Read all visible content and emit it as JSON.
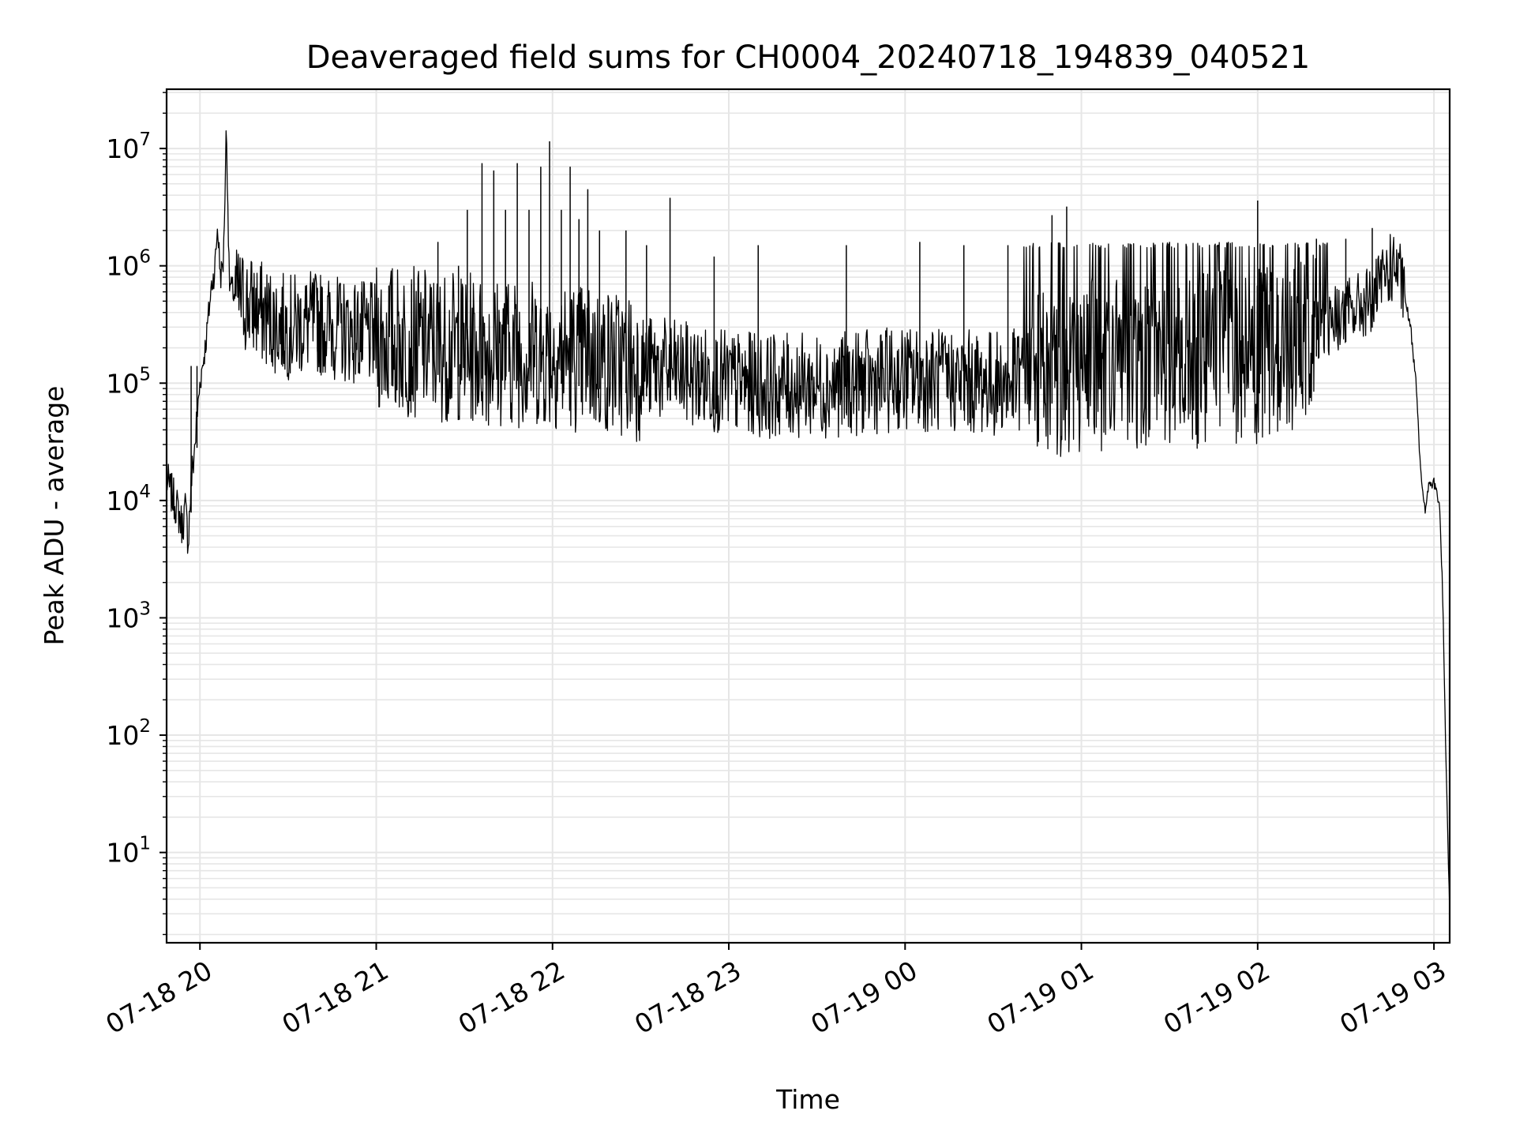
{
  "chart_data": {
    "type": "line",
    "title": "Deaveraged field sums for CH0004_20240718_194839_040521",
    "xlabel": "Time",
    "ylabel": "Peak ADU - average",
    "yscale": "log",
    "ylim": [
      1.7,
      32000000
    ],
    "xlim": [
      "07-18 19:48:39",
      "07-19 03:05:21"
    ],
    "grid": true,
    "line_color": "#000000",
    "grid_color": "#e6e6e6",
    "x_ticks": [
      "07-18 20",
      "07-18 21",
      "07-18 22",
      "07-18 23",
      "07-19 00",
      "07-19 01",
      "07-19 02",
      "07-19 03"
    ],
    "y_ticks": [
      {
        "base": "10",
        "exp": "1"
      },
      {
        "base": "10",
        "exp": "2"
      },
      {
        "base": "10",
        "exp": "3"
      },
      {
        "base": "10",
        "exp": "4"
      },
      {
        "base": "10",
        "exp": "5"
      },
      {
        "base": "10",
        "exp": "6"
      },
      {
        "base": "10",
        "exp": "7"
      }
    ],
    "series": [
      {
        "points": [
          [
            "07-18 19:48:39",
            15000
          ],
          [
            "07-18 19:50",
            12000
          ],
          [
            "07-18 19:52",
            9000
          ],
          [
            "07-18 19:54",
            6000
          ],
          [
            "07-18 19:55",
            8500
          ],
          [
            "07-18 19:56",
            4600
          ],
          [
            "07-18 19:57",
            14000
          ],
          [
            "07-18 19:58",
            25000
          ],
          [
            "07-18 20:00",
            100000
          ],
          [
            "07-18 20:02",
            220000
          ],
          [
            "07-18 20:03",
            400000
          ],
          [
            "07-18 20:04",
            700000
          ],
          [
            "07-18 20:05",
            900000
          ],
          [
            "07-18 20:06",
            2200000
          ],
          [
            "07-18 20:07",
            800000
          ],
          [
            "07-18 20:08",
            1100000
          ],
          [
            "07-18 20:09",
            16000000
          ],
          [
            "07-18 20:10",
            700000
          ],
          [
            "07-18 20:12",
            550000
          ],
          [
            "07-18 20:15",
            500000
          ],
          [
            "07-18 20:18",
            450000
          ],
          [
            "07-18 20:22",
            380000
          ],
          [
            "07-18 20:26",
            330000
          ],
          [
            "07-18 20:30",
            300000
          ],
          [
            "07-18 20:35",
            320000
          ],
          [
            "07-18 20:40",
            330000
          ],
          [
            "07-18 20:45",
            300000
          ],
          [
            "07-18 20:50",
            280000
          ],
          [
            "07-18 20:55",
            270000
          ],
          [
            "07-18 21:00",
            250000
          ],
          [
            "07-18 21:10",
            230000
          ],
          [
            "07-18 21:20",
            210000
          ],
          [
            "07-18 21:30",
            200000
          ],
          [
            "07-18 21:40",
            190000
          ],
          [
            "07-18 21:50",
            185000
          ],
          [
            "07-18 22:00",
            180000
          ],
          [
            "07-18 22:15",
            160000
          ],
          [
            "07-18 22:30",
            140000
          ],
          [
            "07-18 22:45",
            120000
          ],
          [
            "07-18 23:00",
            100000
          ],
          [
            "07-18 23:15",
            95000
          ],
          [
            "07-18 23:30",
            95000
          ],
          [
            "07-18 23:45",
            100000
          ],
          [
            "07-19 00:00",
            110000
          ],
          [
            "07-19 00:15",
            105000
          ],
          [
            "07-19 00:30",
            100000
          ],
          [
            "07-19 00:45",
            110000
          ],
          [
            "07-19 01:00",
            140000
          ],
          [
            "07-19 01:15",
            150000
          ],
          [
            "07-19 01:30",
            150000
          ],
          [
            "07-19 01:45",
            160000
          ],
          [
            "07-19 02:00",
            170000
          ],
          [
            "07-19 02:10",
            200000
          ],
          [
            "07-19 02:20",
            300000
          ],
          [
            "07-19 02:30",
            400000
          ],
          [
            "07-19 02:35",
            450000
          ],
          [
            "07-19 02:40",
            550000
          ],
          [
            "07-19 02:44",
            900000
          ],
          [
            "07-19 02:47",
            1000000
          ],
          [
            "07-19 02:49",
            700000
          ],
          [
            "07-19 02:50",
            550000
          ],
          [
            "07-19 02:52",
            300000
          ],
          [
            "07-19 02:54",
            100000
          ],
          [
            "07-19 02:55",
            30000
          ],
          [
            "07-19 02:56",
            12000
          ],
          [
            "07-19 02:57",
            8000
          ],
          [
            "07-19 02:58",
            13000
          ],
          [
            "07-19 03:00",
            14000
          ],
          [
            "07-19 03:01",
            12000
          ],
          [
            "07-19 03:02",
            8000
          ],
          [
            "07-19 03:03",
            1500
          ],
          [
            "07-19 03:04",
            80
          ],
          [
            "07-19 03:05:21",
            3
          ]
        ],
        "spikes": [
          [
            "07-18 19:57",
            140000
          ],
          [
            "07-18 19:59",
            140000
          ],
          [
            "07-18 20:25",
            600000
          ],
          [
            "07-18 20:40",
            650000
          ],
          [
            "07-18 20:55",
            600000
          ],
          [
            "07-18 21:12",
            700000
          ],
          [
            "07-18 21:21",
            1600000
          ],
          [
            "07-18 21:28",
            1000000
          ],
          [
            "07-18 21:31",
            3000000
          ],
          [
            "07-18 21:36",
            7500000
          ],
          [
            "07-18 21:40",
            6500000
          ],
          [
            "07-18 21:44",
            3000000
          ],
          [
            "07-18 21:48",
            7500000
          ],
          [
            "07-18 21:52",
            3000000
          ],
          [
            "07-18 21:56",
            7000000
          ],
          [
            "07-18 21:59",
            11500000
          ],
          [
            "07-18 22:03",
            3000000
          ],
          [
            "07-18 22:06",
            7000000
          ],
          [
            "07-18 22:09",
            2500000
          ],
          [
            "07-18 22:12",
            4500000
          ],
          [
            "07-18 22:16",
            2000000
          ],
          [
            "07-18 22:25",
            2000000
          ],
          [
            "07-18 22:32",
            1500000
          ],
          [
            "07-18 22:40",
            3800000
          ],
          [
            "07-18 22:55",
            1200000
          ],
          [
            "07-18 23:10",
            1500000
          ],
          [
            "07-18 23:40",
            1500000
          ],
          [
            "07-19 00:05",
            1600000
          ],
          [
            "07-19 00:20",
            1500000
          ],
          [
            "07-19 00:35",
            1500000
          ],
          [
            "07-19 00:50",
            2700000
          ],
          [
            "07-19 00:55",
            3200000
          ],
          [
            "07-19 01:30",
            1600000
          ],
          [
            "07-19 01:50",
            1600000
          ],
          [
            "07-19 02:00",
            3600000
          ],
          [
            "07-19 02:20",
            1700000
          ],
          [
            "07-19 02:30",
            1700000
          ],
          [
            "07-19 02:39",
            2100000
          ]
        ]
      }
    ]
  }
}
